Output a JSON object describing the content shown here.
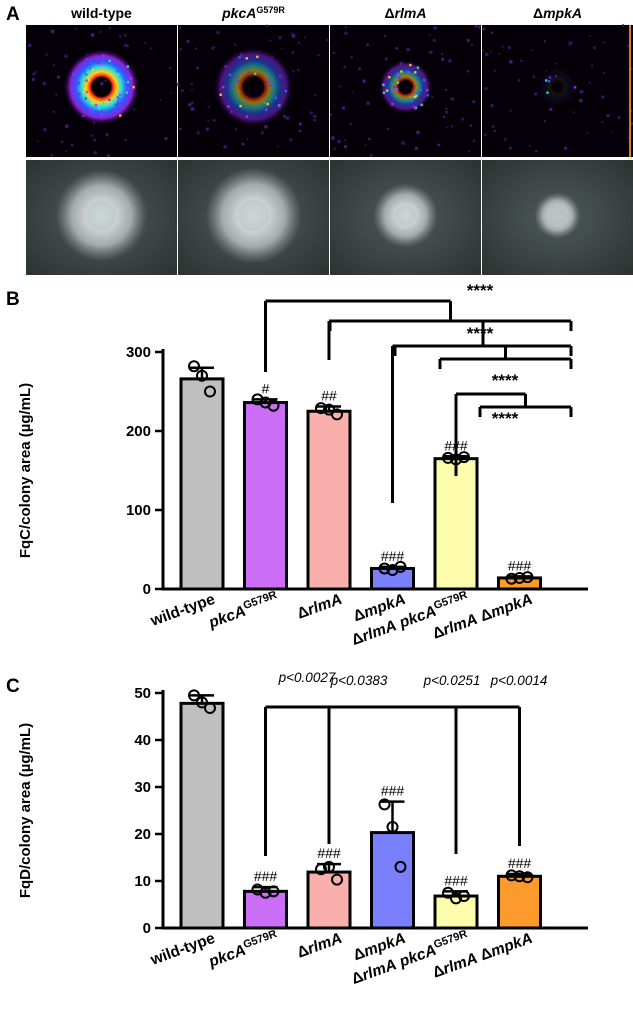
{
  "panel_a": {
    "letter": "A",
    "strains": [
      {
        "title": "wild-type",
        "heat": 1.0,
        "spread": 1.0
      },
      {
        "title": "pkcA G579R",
        "heat": 0.55,
        "spread": 1.05
      },
      {
        "title": "ΔrlmA",
        "heat": 0.6,
        "spread": 0.7
      },
      {
        "title": "ΔmpkA",
        "heat": 0.08,
        "spread": 0.5
      }
    ]
  },
  "chart_data": [
    {
      "type": "bar",
      "panel": "B",
      "ylabel": "FqC/colony area (µg/mL)",
      "ylim": [
        0,
        300
      ],
      "yticks": [
        0,
        100,
        200,
        300
      ],
      "categories": [
        "wild-type",
        "pkcA G579R",
        "ΔrlmA",
        "ΔmpkA",
        "ΔrlmA pkcA G579R",
        "ΔrlmA ΔmpkA"
      ],
      "values": [
        266,
        236,
        225,
        26,
        165,
        14
      ],
      "errors": [
        14,
        4,
        6,
        2,
        3,
        2
      ],
      "points": [
        [
          282,
          270,
          250
        ],
        [
          240,
          236,
          232
        ],
        [
          229,
          227,
          221
        ],
        [
          26,
          24,
          28
        ],
        [
          166,
          164,
          167
        ],
        [
          13,
          14,
          15
        ]
      ],
      "colors": [
        "#bfbfbf",
        "#cc6ef5",
        "#f9b0ad",
        "#7a7ffb",
        "#fdfcab",
        "#fd9a2c"
      ],
      "markers": [
        "",
        "#",
        "##",
        "###",
        "###",
        "###"
      ],
      "significance": [
        {
          "label": "****",
          "from": 1,
          "to": [
            4,
            5
          ]
        },
        {
          "label": "****",
          "from": 2,
          "to": [
            4,
            5
          ]
        },
        {
          "label": "****",
          "from": 3,
          "to": [
            4,
            5
          ]
        },
        {
          "label": "****",
          "from": 4,
          "to": [
            5
          ]
        }
      ]
    },
    {
      "type": "bar",
      "panel": "C",
      "ylabel": "FqD/colony area (µg/mL)",
      "ylim": [
        0,
        50
      ],
      "yticks": [
        0,
        10,
        20,
        30,
        40,
        50
      ],
      "categories": [
        "wild-type",
        "pkcA G579R",
        "ΔrlmA",
        "ΔmpkA",
        "ΔrlmA pkcA G579R",
        "ΔrlmA ΔmpkA"
      ],
      "values": [
        47.8,
        7.8,
        11.9,
        20.3,
        6.8,
        11.0
      ],
      "errors": [
        1.7,
        0.9,
        1.7,
        6.6,
        1.0,
        0.5
      ],
      "points": [
        [
          49.5,
          48.0,
          46.8
        ],
        [
          8.2,
          7.5,
          7.8
        ],
        [
          12.5,
          13.0,
          10.3
        ],
        [
          26.3,
          21.5,
          13.0
        ],
        [
          7.5,
          6.3,
          6.8
        ],
        [
          11.2,
          11.0,
          10.8
        ]
      ],
      "colors": [
        "#bfbfbf",
        "#cc6ef5",
        "#f9b0ad",
        "#7a7ffb",
        "#fdfcab",
        "#fd9a2c"
      ],
      "markers": [
        "",
        "###",
        "###",
        "###",
        "###",
        "###"
      ],
      "pvalues": [
        "p<0.0027",
        "p<0.0383",
        "p<0.0251",
        "p<0.0014"
      ]
    }
  ]
}
